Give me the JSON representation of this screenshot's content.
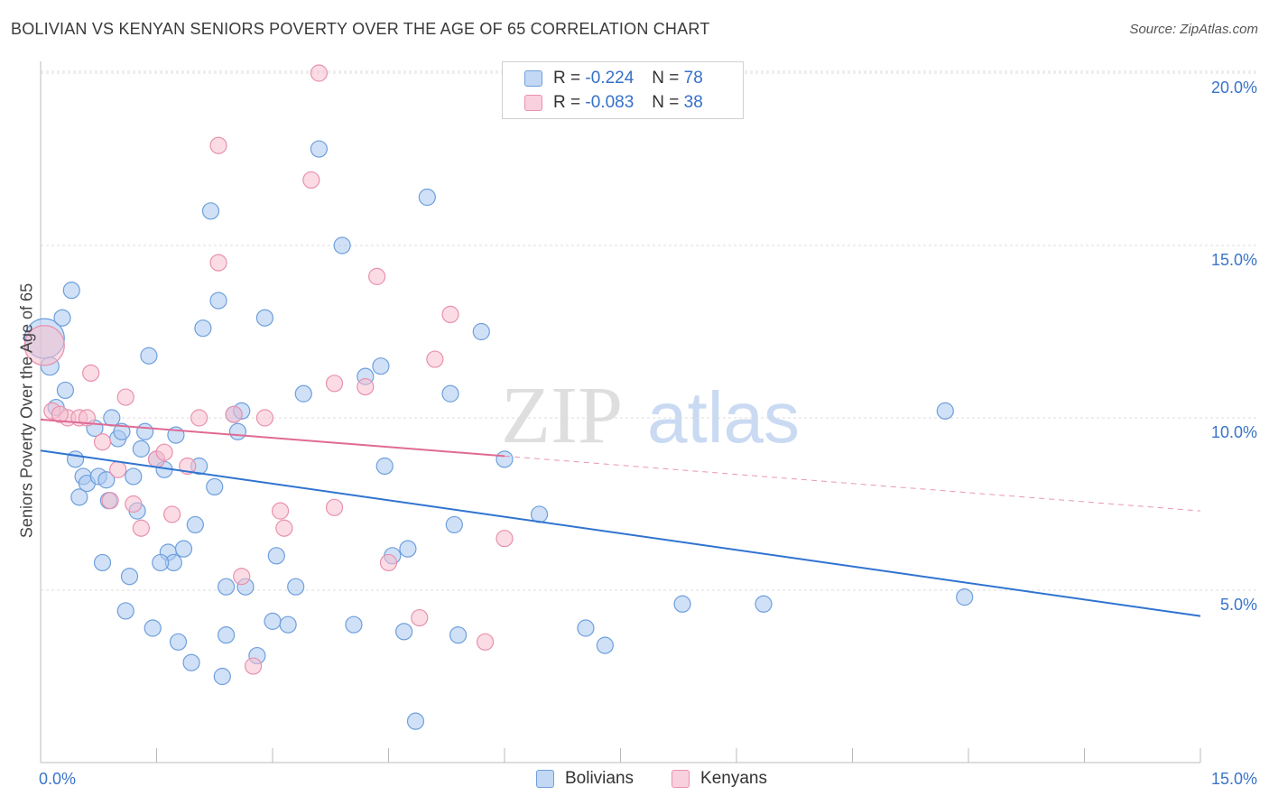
{
  "header": {
    "title": "BOLIVIAN VS KENYAN SENIORS POVERTY OVER THE AGE OF 65 CORRELATION CHART",
    "source": "Source: ZipAtlas.com"
  },
  "legend": {
    "rows": [
      {
        "r_label": "R = ",
        "r_value": "-0.224",
        "n_label": "N = ",
        "n_value": "78"
      },
      {
        "r_label": "R = ",
        "r_value": "-0.083",
        "n_label": "N = ",
        "n_value": "38"
      }
    ],
    "series_labels": [
      "Bolivians",
      "Kenyans"
    ]
  },
  "colors": {
    "blue_fill": "#a9c8f0",
    "blue_stroke": "#6e9fdc",
    "blue_line": "#2f74d0",
    "pink_fill": "#f7bfd0",
    "pink_stroke": "#e891ad",
    "pink_line": "#e06a95",
    "axis_text": "#3a74c8",
    "grid": "#dcdcdc"
  },
  "chart_data": {
    "type": "scatter",
    "title": "BOLIVIAN VS KENYAN SENIORS POVERTY OVER THE AGE OF 65 CORRELATION CHART",
    "xlabel": "",
    "ylabel": "Seniors Poverty Over the Age of 65",
    "xlim": [
      0,
      15
    ],
    "ylim": [
      0,
      20.5
    ],
    "x_tick_labels": [
      "0.0%",
      "15.0%"
    ],
    "y_ticks": [
      5,
      10,
      15,
      20
    ],
    "y_tick_labels": [
      "5.0%",
      "10.0%",
      "15.0%",
      "20.0%"
    ],
    "grid": true,
    "legend_position": "top-center",
    "watermark": "ZIPatlas",
    "series": [
      {
        "name": "Bolivians",
        "r": -0.224,
        "n": 78,
        "trend": {
          "x": [
            0,
            15
          ],
          "y": [
            9.05,
            4.25
          ],
          "dashed_from": null
        },
        "points": [
          [
            0.05,
            12.3,
            22
          ],
          [
            0.12,
            11.5,
            10
          ],
          [
            0.2,
            10.3,
            9
          ],
          [
            0.28,
            12.9,
            9
          ],
          [
            0.32,
            10.8,
            9
          ],
          [
            0.4,
            13.7,
            9
          ],
          [
            0.45,
            8.8,
            9
          ],
          [
            0.5,
            7.7,
            9
          ],
          [
            0.55,
            8.3,
            9
          ],
          [
            0.6,
            8.1,
            9
          ],
          [
            0.7,
            9.7,
            9
          ],
          [
            0.75,
            8.3,
            9
          ],
          [
            0.8,
            5.8,
            9
          ],
          [
            0.85,
            8.2,
            9
          ],
          [
            0.88,
            7.6,
            9
          ],
          [
            0.92,
            10.0,
            9
          ],
          [
            1.0,
            9.4,
            9
          ],
          [
            1.05,
            9.6,
            9
          ],
          [
            1.1,
            4.4,
            9
          ],
          [
            1.15,
            5.4,
            9
          ],
          [
            1.2,
            8.3,
            9
          ],
          [
            1.25,
            7.3,
            9
          ],
          [
            1.3,
            9.1,
            9
          ],
          [
            1.35,
            9.6,
            9
          ],
          [
            1.4,
            11.8,
            9
          ],
          [
            1.45,
            3.9,
            9
          ],
          [
            1.5,
            8.8,
            9
          ],
          [
            1.6,
            8.5,
            9
          ],
          [
            1.65,
            6.1,
            9
          ],
          [
            1.72,
            5.8,
            9
          ],
          [
            1.75,
            9.5,
            9
          ],
          [
            1.78,
            3.5,
            9
          ],
          [
            1.85,
            6.2,
            9
          ],
          [
            1.95,
            2.9,
            9
          ],
          [
            2.0,
            6.9,
            9
          ],
          [
            2.05,
            8.6,
            9
          ],
          [
            2.1,
            12.6,
            9
          ],
          [
            2.2,
            16.0,
            9
          ],
          [
            2.25,
            8.0,
            9
          ],
          [
            2.3,
            13.4,
            9
          ],
          [
            2.35,
            2.5,
            9
          ],
          [
            2.4,
            3.7,
            9
          ],
          [
            2.5,
            10.1,
            9
          ],
          [
            2.55,
            9.6,
            9
          ],
          [
            2.6,
            10.2,
            9
          ],
          [
            2.65,
            5.1,
            9
          ],
          [
            2.8,
            3.1,
            9
          ],
          [
            2.9,
            12.9,
            9
          ],
          [
            3.0,
            4.1,
            9
          ],
          [
            3.05,
            6.0,
            9
          ],
          [
            3.2,
            4.0,
            9
          ],
          [
            3.3,
            5.1,
            9
          ],
          [
            3.4,
            10.7,
            9
          ],
          [
            3.6,
            17.8,
            9
          ],
          [
            3.9,
            15.0,
            9
          ],
          [
            4.05,
            4.0,
            9
          ],
          [
            4.2,
            11.2,
            9
          ],
          [
            4.4,
            11.5,
            9
          ],
          [
            4.45,
            8.6,
            9
          ],
          [
            4.55,
            6.0,
            9
          ],
          [
            4.7,
            3.8,
            9
          ],
          [
            4.75,
            6.2,
            9
          ],
          [
            4.85,
            1.2,
            9
          ],
          [
            5.0,
            16.4,
            9
          ],
          [
            5.3,
            10.7,
            9
          ],
          [
            5.4,
            3.7,
            9
          ],
          [
            5.35,
            6.9,
            9
          ],
          [
            5.7,
            12.5,
            9
          ],
          [
            6.0,
            8.8,
            9
          ],
          [
            6.45,
            7.2,
            9
          ],
          [
            7.05,
            3.9,
            9
          ],
          [
            7.3,
            3.4,
            9
          ],
          [
            8.3,
            4.6,
            9
          ],
          [
            9.35,
            4.6,
            9
          ],
          [
            11.7,
            10.2,
            9
          ],
          [
            11.95,
            4.8,
            9
          ],
          [
            2.4,
            5.1,
            9
          ],
          [
            1.55,
            5.8,
            9
          ]
        ]
      },
      {
        "name": "Kenyans",
        "r": -0.083,
        "n": 38,
        "trend": {
          "x": [
            0,
            15
          ],
          "y": [
            9.95,
            7.3
          ],
          "dashed_from": 6.0
        },
        "points": [
          [
            0.05,
            12.1,
            22
          ],
          [
            0.15,
            10.2,
            9
          ],
          [
            0.35,
            10.0,
            9
          ],
          [
            0.5,
            10.0,
            9
          ],
          [
            0.65,
            11.3,
            9
          ],
          [
            0.8,
            9.3,
            9
          ],
          [
            0.9,
            7.6,
            9
          ],
          [
            1.0,
            8.5,
            9
          ],
          [
            1.1,
            10.6,
            9
          ],
          [
            1.2,
            7.5,
            9
          ],
          [
            1.3,
            6.8,
            9
          ],
          [
            1.5,
            8.8,
            9
          ],
          [
            1.7,
            7.2,
            9
          ],
          [
            1.9,
            8.6,
            9
          ],
          [
            2.05,
            10.0,
            9
          ],
          [
            2.3,
            14.5,
            9
          ],
          [
            2.3,
            17.9,
            9
          ],
          [
            2.5,
            10.1,
            9
          ],
          [
            2.6,
            5.4,
            9
          ],
          [
            2.75,
            2.8,
            9
          ],
          [
            2.9,
            10.0,
            9
          ],
          [
            3.1,
            7.3,
            9
          ],
          [
            3.15,
            6.8,
            9
          ],
          [
            3.5,
            16.9,
            9
          ],
          [
            3.6,
            20.0,
            9
          ],
          [
            3.8,
            11.0,
            9
          ],
          [
            3.8,
            7.4,
            9
          ],
          [
            4.2,
            10.9,
            9
          ],
          [
            4.35,
            14.1,
            9
          ],
          [
            4.5,
            5.8,
            9
          ],
          [
            4.9,
            4.2,
            9
          ],
          [
            5.1,
            11.7,
            9
          ],
          [
            5.3,
            13.0,
            9
          ],
          [
            5.75,
            3.5,
            9
          ],
          [
            6.0,
            6.5,
            9
          ],
          [
            0.6,
            10.0,
            9
          ],
          [
            1.6,
            9.0,
            9
          ],
          [
            0.25,
            10.1,
            9
          ]
        ]
      }
    ]
  }
}
